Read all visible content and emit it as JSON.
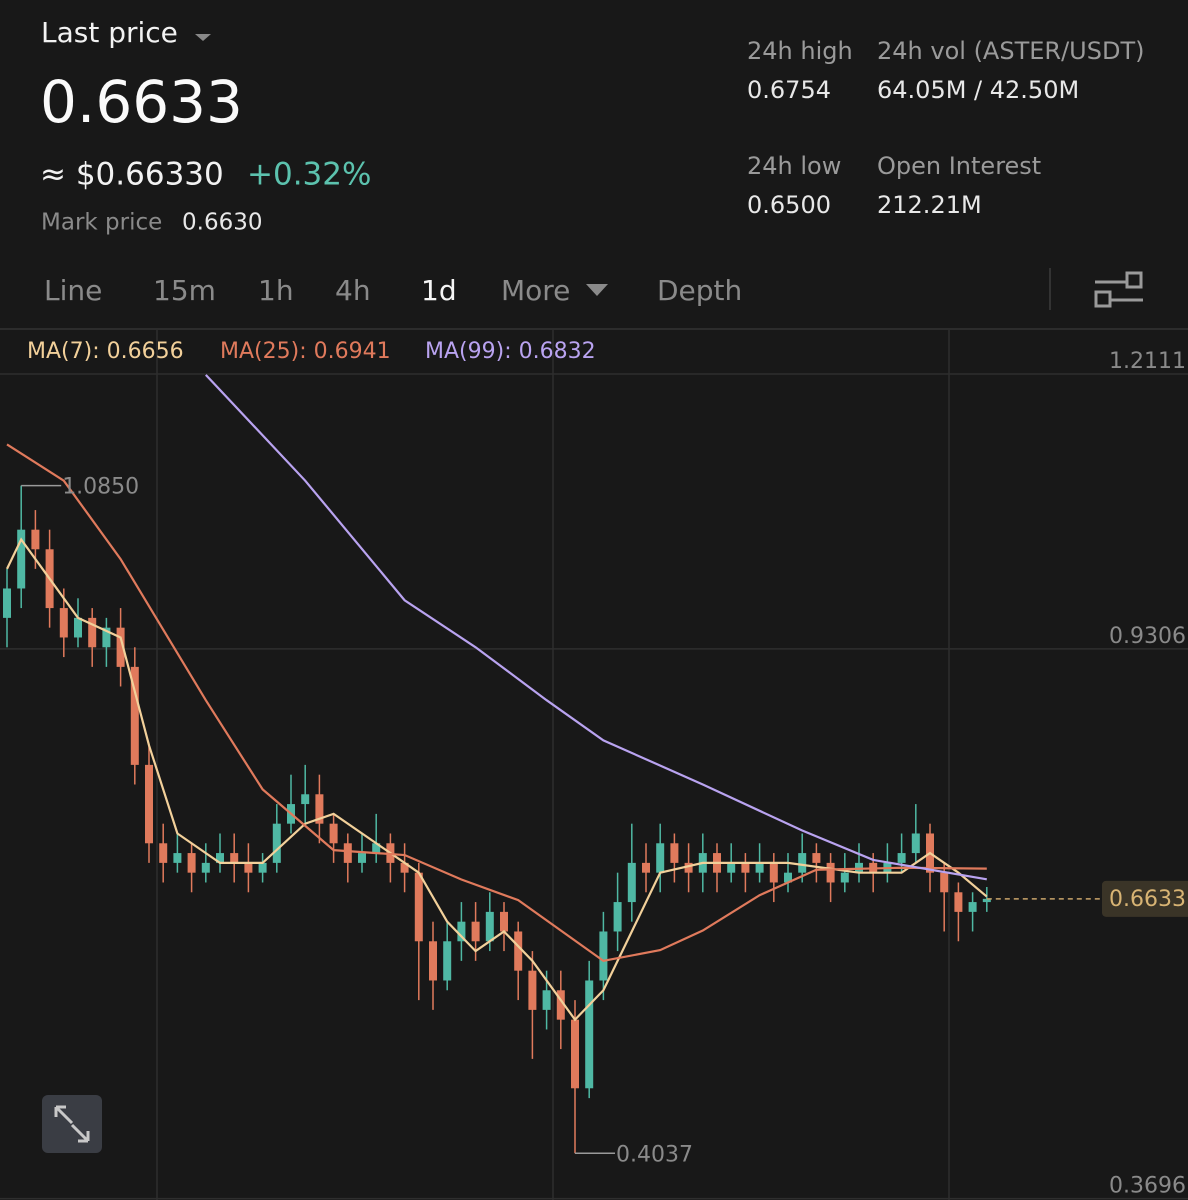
{
  "header": {
    "last_price_label": "Last price",
    "price": "0.6633",
    "usd_price": "≈ $0.66330",
    "change": "+0.32%",
    "mark_label": "Mark price",
    "mark_value": "0.6630",
    "stats": [
      {
        "label": "24h high",
        "value": "0.6754"
      },
      {
        "label": "24h vol (ASTER/USDT)",
        "value": "64.05M / 42.50M"
      },
      {
        "label": "24h low",
        "value": "0.6500"
      },
      {
        "label": "Open Interest",
        "value": "212.21M"
      }
    ]
  },
  "tabs": [
    "Line",
    "15m",
    "1h",
    "4h",
    "1d",
    "More",
    "Depth"
  ],
  "chart_data": {
    "type": "candlestick",
    "up_color": "#4fb8a4",
    "down_color": "#e07a5c",
    "open": [
      0.95,
      0.98,
      1.04,
      1.02,
      0.96,
      0.93,
      0.95,
      0.92,
      0.94,
      0.9,
      0.8,
      0.72,
      0.7,
      0.71,
      0.69,
      0.7,
      0.71,
      0.7,
      0.69,
      0.7,
      0.74,
      0.76,
      0.77,
      0.74,
      0.72,
      0.7,
      0.71,
      0.72,
      0.7,
      0.69,
      0.62,
      0.58,
      0.62,
      0.64,
      0.62,
      0.65,
      0.63,
      0.59,
      0.55,
      0.57,
      0.54,
      0.47,
      0.58,
      0.63,
      0.66,
      0.7,
      0.69,
      0.72,
      0.7,
      0.69,
      0.71,
      0.69,
      0.7,
      0.69,
      0.7,
      0.68,
      0.69,
      0.71,
      0.7,
      0.68,
      0.69,
      0.7,
      0.69,
      0.7,
      0.71,
      0.73,
      0.69,
      0.67,
      0.65,
      0.66
    ],
    "high": [
      1.0,
      1.085,
      1.06,
      1.04,
      0.98,
      0.97,
      0.96,
      0.95,
      0.96,
      0.92,
      0.82,
      0.74,
      0.73,
      0.72,
      0.72,
      0.73,
      0.73,
      0.72,
      0.71,
      0.76,
      0.79,
      0.8,
      0.79,
      0.75,
      0.73,
      0.73,
      0.75,
      0.73,
      0.72,
      0.7,
      0.64,
      0.64,
      0.66,
      0.66,
      0.67,
      0.66,
      0.64,
      0.61,
      0.59,
      0.59,
      0.56,
      0.6,
      0.65,
      0.69,
      0.74,
      0.72,
      0.74,
      0.73,
      0.72,
      0.73,
      0.72,
      0.72,
      0.71,
      0.72,
      0.71,
      0.71,
      0.73,
      0.72,
      0.71,
      0.71,
      0.72,
      0.71,
      0.72,
      0.73,
      0.76,
      0.74,
      0.7,
      0.68,
      0.67,
      0.6754
    ],
    "low": [
      0.92,
      0.96,
      1.0,
      0.94,
      0.91,
      0.92,
      0.9,
      0.9,
      0.88,
      0.78,
      0.7,
      0.68,
      0.69,
      0.67,
      0.68,
      0.69,
      0.68,
      0.67,
      0.68,
      0.69,
      0.73,
      0.74,
      0.72,
      0.7,
      0.68,
      0.69,
      0.7,
      0.68,
      0.67,
      0.56,
      0.55,
      0.57,
      0.6,
      0.6,
      0.61,
      0.61,
      0.56,
      0.5,
      0.53,
      0.51,
      0.4037,
      0.46,
      0.56,
      0.61,
      0.64,
      0.67,
      0.67,
      0.68,
      0.67,
      0.67,
      0.67,
      0.68,
      0.67,
      0.68,
      0.66,
      0.67,
      0.68,
      0.68,
      0.66,
      0.67,
      0.68,
      0.67,
      0.68,
      0.69,
      0.7,
      0.67,
      0.63,
      0.62,
      0.63,
      0.65
    ],
    "close": [
      0.98,
      1.04,
      1.02,
      0.96,
      0.93,
      0.95,
      0.92,
      0.94,
      0.9,
      0.8,
      0.72,
      0.7,
      0.71,
      0.69,
      0.7,
      0.71,
      0.7,
      0.69,
      0.7,
      0.74,
      0.76,
      0.77,
      0.74,
      0.72,
      0.7,
      0.71,
      0.72,
      0.7,
      0.69,
      0.62,
      0.58,
      0.62,
      0.64,
      0.62,
      0.65,
      0.63,
      0.59,
      0.55,
      0.57,
      0.54,
      0.47,
      0.58,
      0.63,
      0.66,
      0.7,
      0.69,
      0.72,
      0.7,
      0.69,
      0.71,
      0.69,
      0.7,
      0.69,
      0.7,
      0.68,
      0.69,
      0.71,
      0.7,
      0.68,
      0.69,
      0.7,
      0.69,
      0.7,
      0.71,
      0.73,
      0.69,
      0.67,
      0.65,
      0.66,
      0.6633
    ],
    "series": [
      {
        "name": "MA(7): 0.6656",
        "color": "#f2d09a",
        "x": [
          0,
          1,
          3,
          5,
          8,
          10,
          12,
          15,
          18,
          21,
          23,
          26,
          29,
          31,
          33,
          35,
          37,
          40,
          42,
          44,
          46,
          49,
          55,
          60,
          63,
          65,
          67,
          69
        ],
        "values": [
          1.0,
          1.03,
          0.99,
          0.95,
          0.93,
          0.82,
          0.73,
          0.7,
          0.7,
          0.74,
          0.75,
          0.72,
          0.69,
          0.64,
          0.61,
          0.63,
          0.6,
          0.54,
          0.57,
          0.63,
          0.69,
          0.7,
          0.7,
          0.69,
          0.69,
          0.71,
          0.69,
          0.6656
        ]
      },
      {
        "name": "MA(25): 0.6941",
        "color": "#e07a5c",
        "x": [
          0,
          4,
          8,
          14,
          18,
          23,
          28,
          32,
          36,
          42,
          46,
          49,
          53,
          57,
          63,
          69
        ],
        "values": [
          1.127,
          1.09,
          1.01,
          0.866,
          0.775,
          0.713,
          0.708,
          0.683,
          0.662,
          0.6,
          0.611,
          0.631,
          0.667,
          0.693,
          0.695,
          0.6941
        ]
      },
      {
        "name": "MA(99): 0.6832",
        "color": "#b9a3f0",
        "x": [
          14,
          21,
          28,
          33,
          38,
          42,
          49,
          56,
          61,
          69
        ],
        "values": [
          1.198,
          1.09,
          0.968,
          0.92,
          0.866,
          0.825,
          0.78,
          0.733,
          0.703,
          0.6832
        ]
      }
    ],
    "ylim": [
      0.355,
      1.2111
    ],
    "yticks": [
      1.2111,
      0.9306,
      0.3696
    ],
    "last_price": 0.6633,
    "high_marker": {
      "value": 1.085,
      "label": "1.0850"
    },
    "low_marker": 0.4037
  }
}
